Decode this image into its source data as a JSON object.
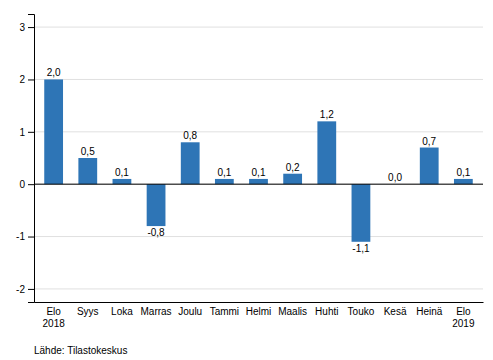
{
  "chart_data": {
    "type": "bar",
    "categories": [
      "Elo\n2018",
      "Syys",
      "Loka",
      "Marras",
      "Joulu",
      "Tammi",
      "Helmi",
      "Maalis",
      "Huhti",
      "Touko",
      "Kesä",
      "Heinä",
      "Elo\n2019"
    ],
    "values": [
      2.0,
      0.5,
      0.1,
      -0.8,
      0.8,
      0.1,
      0.1,
      0.2,
      1.2,
      -1.1,
      0.0,
      0.7,
      0.1
    ],
    "value_labels": [
      "2,0",
      "0,5",
      "0,1",
      "-0,8",
      "0,8",
      "0,1",
      "0,1",
      "0,2",
      "1,2",
      "-1,1",
      "0,0",
      "0,7",
      "0,1"
    ],
    "data_labels": true,
    "color": "#2E75B6",
    "ylim": [
      -2.25,
      3.25
    ],
    "yticks": [
      -2,
      -1,
      0,
      1,
      2,
      3
    ],
    "grid": true,
    "annotations": [
      "Lähde: Tilastokeskus"
    ]
  }
}
